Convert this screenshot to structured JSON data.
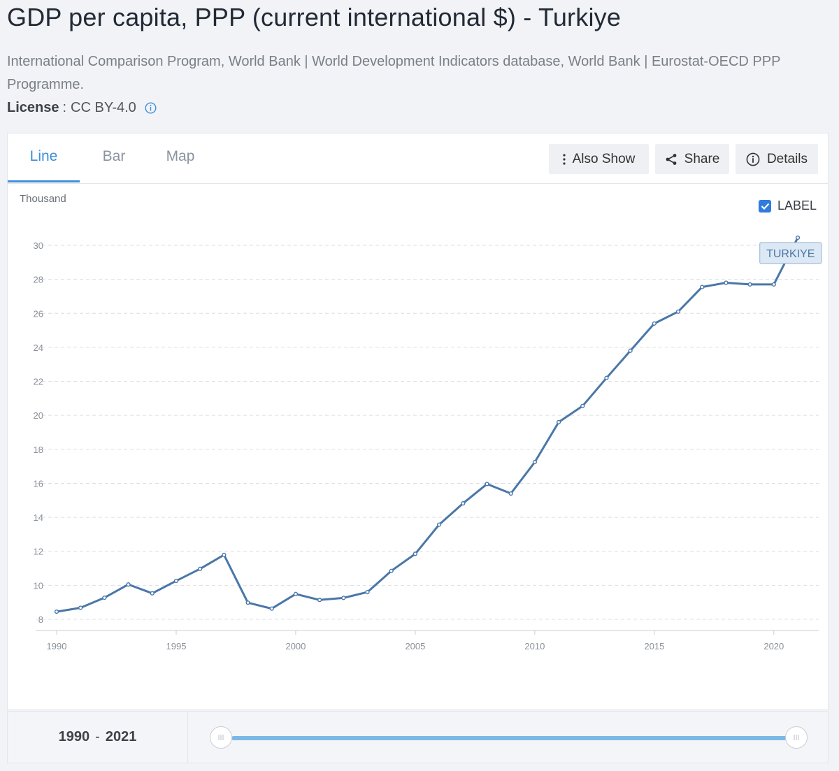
{
  "header": {
    "title": "GDP per capita, PPP (current international $) - Turkiye",
    "sources": "International Comparison Program, World Bank | World Development Indicators database, World Bank | Eurostat-OECD PPP Programme.",
    "license_key": "License",
    "license_sep": ":",
    "license_value": "CC BY-4.0"
  },
  "tabs": [
    {
      "label": "Line",
      "active": true
    },
    {
      "label": "Bar",
      "active": false
    },
    {
      "label": "Map",
      "active": false
    }
  ],
  "toolbar": {
    "also_show": "Also Show",
    "share": "Share",
    "details": "Details"
  },
  "label_toggle": {
    "text": "LABEL",
    "checked": true
  },
  "range": {
    "start": "1990",
    "sep": "-",
    "end": "2021"
  },
  "colors": {
    "accent": "#3d8fd8",
    "line": "#4a77a8",
    "checkbox": "#2f7be0",
    "slider": "#7bb8e6"
  },
  "chart_data": {
    "type": "line",
    "ylabel": "Thousand",
    "xlabel": "",
    "x_ticks": [
      1990,
      1995,
      2000,
      2005,
      2010,
      2015,
      2020
    ],
    "y_ticks": [
      8,
      10,
      12,
      14,
      16,
      18,
      20,
      22,
      24,
      26,
      28,
      30
    ],
    "xlim": [
      1990,
      2021
    ],
    "ylim": [
      8,
      30
    ],
    "grid": true,
    "series": [
      {
        "name": "TURKIYE",
        "x": [
          1990,
          1991,
          1992,
          1993,
          1994,
          1995,
          1996,
          1997,
          1998,
          1999,
          2000,
          2001,
          2002,
          2003,
          2004,
          2005,
          2006,
          2007,
          2008,
          2009,
          2010,
          2011,
          2012,
          2013,
          2014,
          2015,
          2016,
          2017,
          2018,
          2019,
          2020,
          2021
        ],
        "values": [
          8.45,
          8.68,
          9.27,
          10.05,
          9.53,
          10.26,
          10.97,
          11.79,
          8.98,
          8.63,
          9.49,
          9.14,
          9.26,
          9.6,
          10.85,
          11.85,
          13.57,
          14.82,
          15.96,
          15.4,
          17.25,
          19.6,
          20.55,
          22.2,
          23.8,
          25.4,
          26.1,
          27.55,
          27.8,
          27.7,
          27.7,
          30.45
        ]
      }
    ]
  }
}
